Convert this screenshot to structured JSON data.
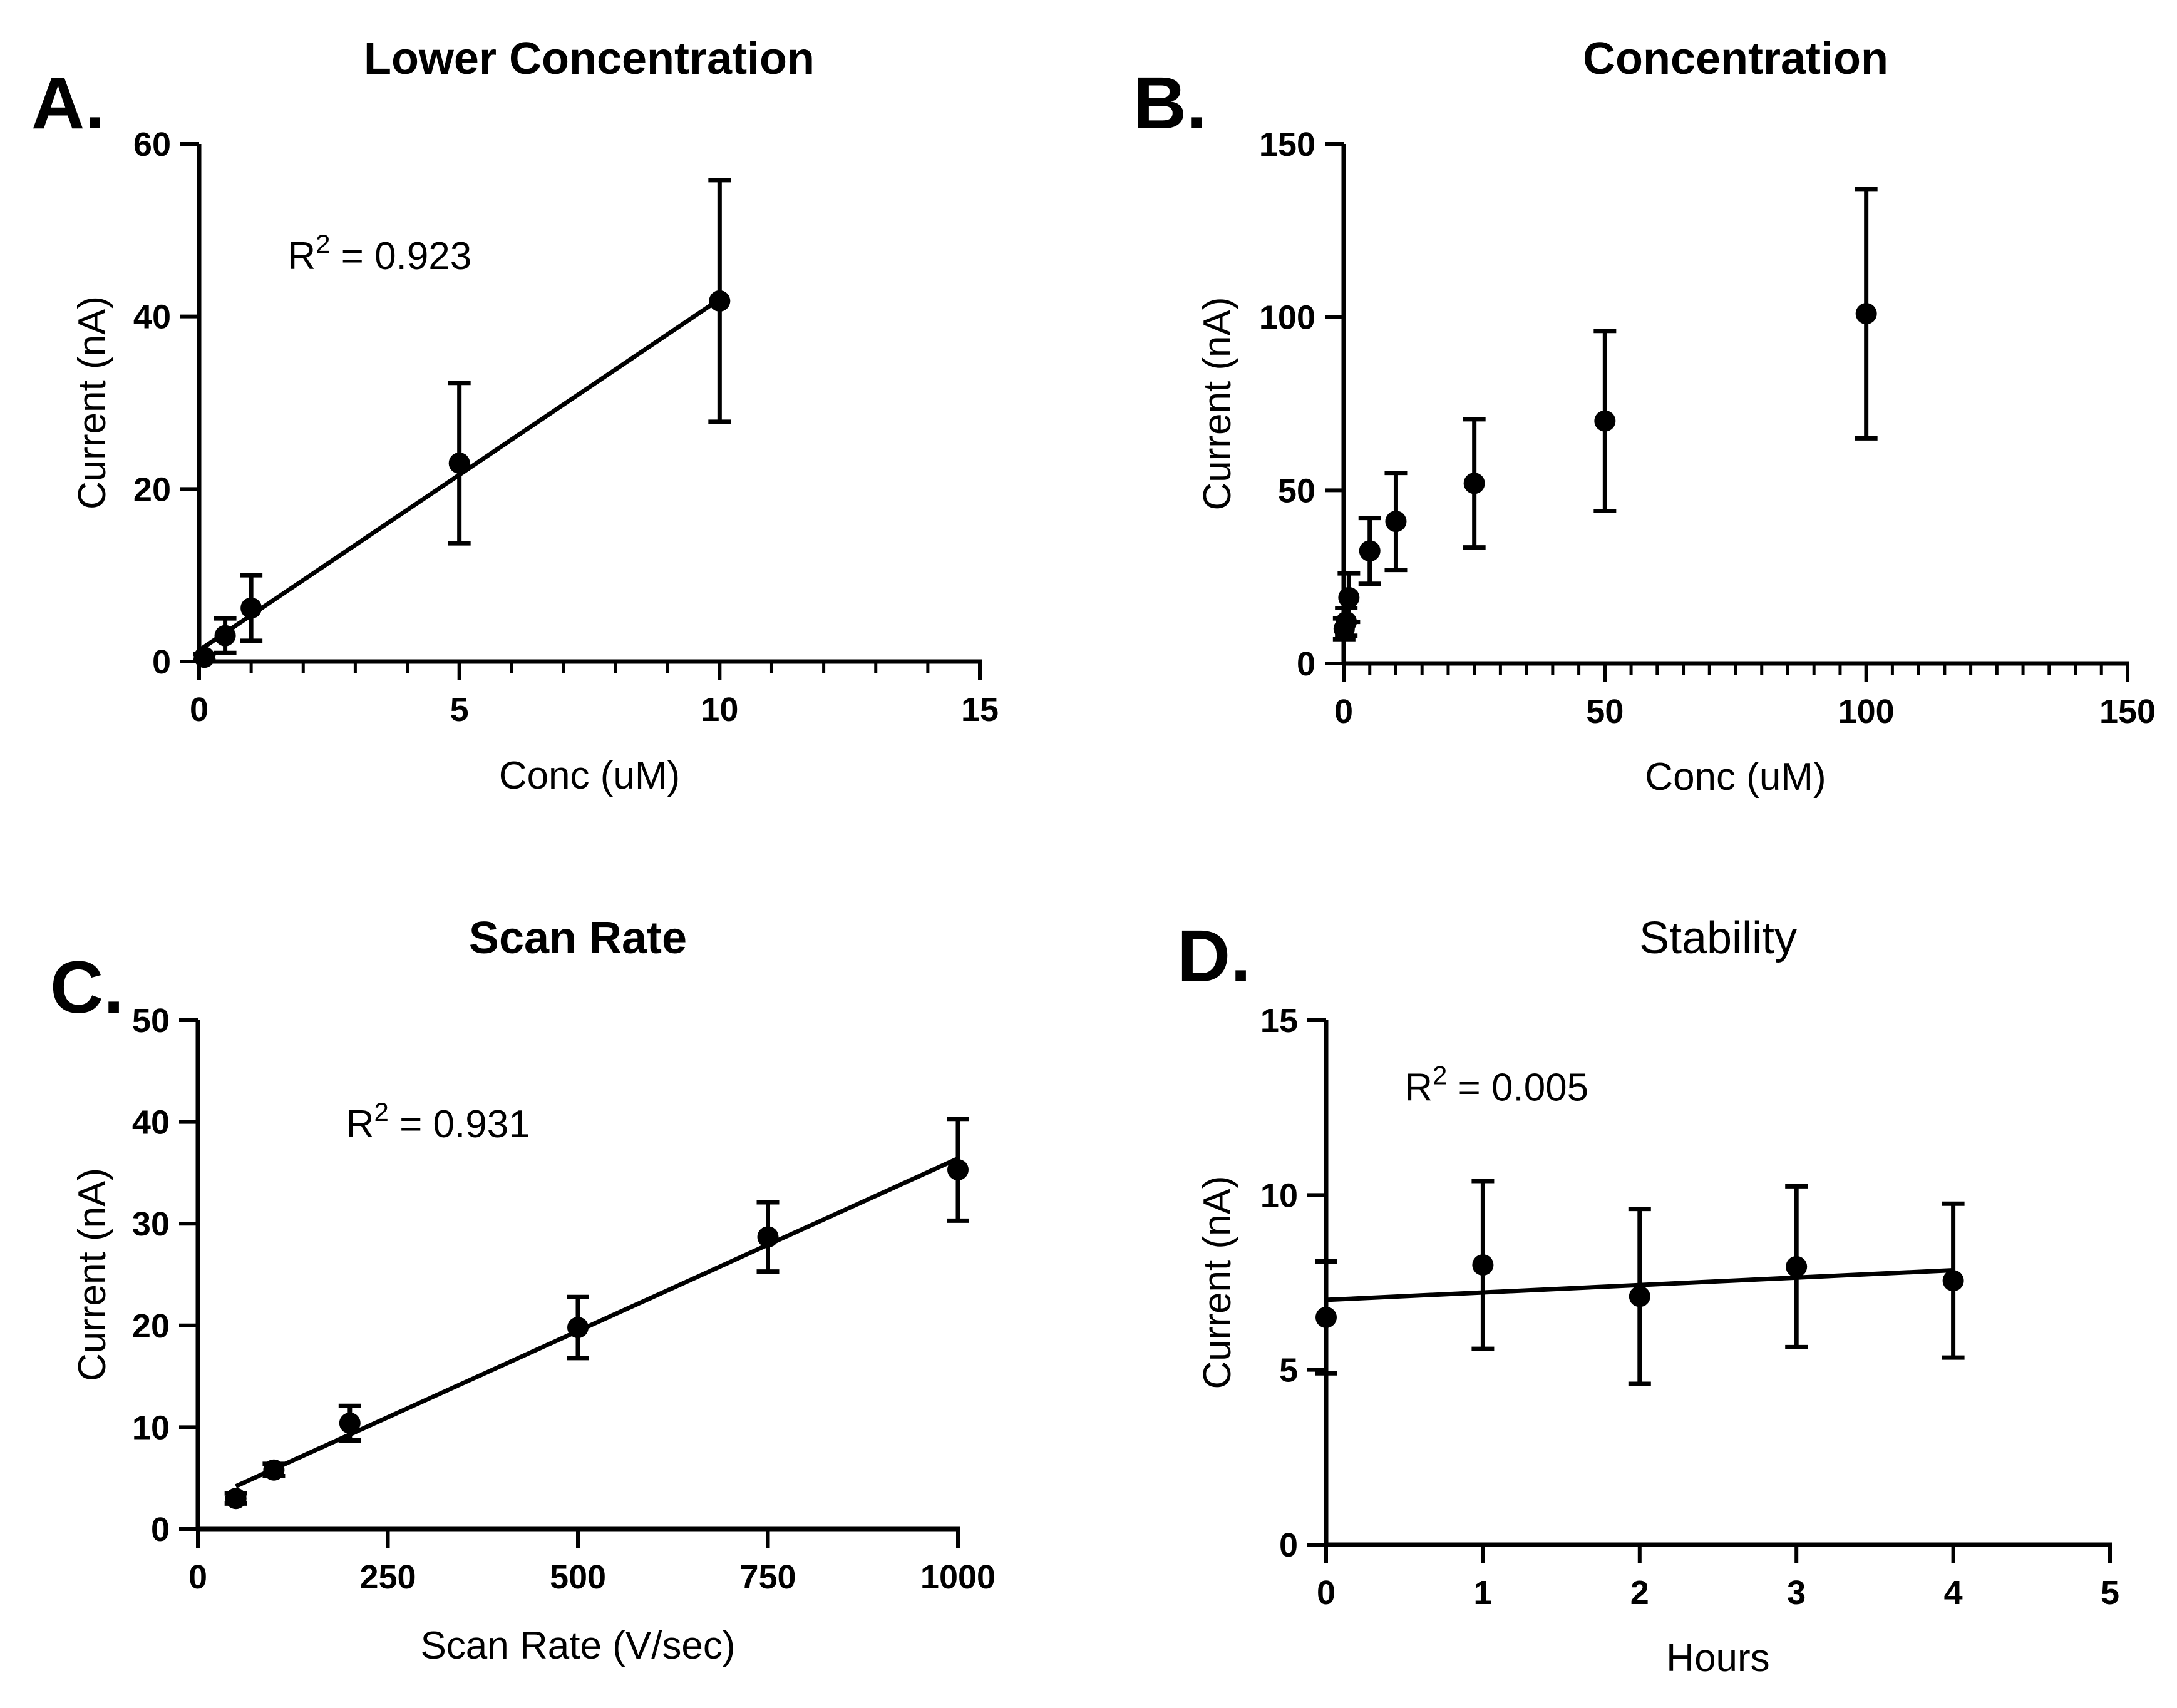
{
  "chart_data": [
    {
      "panel": "A.",
      "type": "scatter",
      "title": "Lower  Concentration",
      "title_bold": true,
      "xlabel": "Conc (uM)",
      "ylabel": "Current (nA)",
      "xlim": [
        0,
        15
      ],
      "ylim": [
        0,
        60
      ],
      "xticks": [
        0,
        5,
        10,
        15
      ],
      "yticks": [
        0,
        20,
        40,
        60
      ],
      "x_minor_step": 1,
      "points": [
        {
          "x": 0.1,
          "y": 0.5,
          "err": 0.4
        },
        {
          "x": 0.5,
          "y": 3.0,
          "err": 2.0
        },
        {
          "x": 1,
          "y": 6.2,
          "err": 3.8
        },
        {
          "x": 5,
          "y": 23.0,
          "err": 9.3
        },
        {
          "x": 10,
          "y": 41.8,
          "err": 14.0
        }
      ],
      "fit": {
        "x": [
          0,
          10
        ],
        "y": [
          1.3,
          42.0
        ]
      },
      "annotation": {
        "text": "R",
        "sup": "2",
        "rest": " = 0.923",
        "at": [
          1.7,
          45.5
        ]
      }
    },
    {
      "panel": "B.",
      "type": "scatter",
      "title": "Concentration",
      "title_bold": true,
      "xlabel": "Conc (uM)",
      "ylabel": "Current (nA)",
      "xlim": [
        0,
        150
      ],
      "ylim": [
        0,
        150
      ],
      "xticks": [
        0,
        50,
        100,
        150
      ],
      "yticks": [
        0,
        50,
        100,
        150
      ],
      "x_minor_step": 5,
      "points": [
        {
          "x": 0.1,
          "y": 10,
          "err": 3
        },
        {
          "x": 0.5,
          "y": 12,
          "err": 4
        },
        {
          "x": 1,
          "y": 19,
          "err": 7
        },
        {
          "x": 5,
          "y": 32.5,
          "err": 9.5
        },
        {
          "x": 10,
          "y": 41,
          "err": 14
        },
        {
          "x": 25,
          "y": 52,
          "err": 18.5
        },
        {
          "x": 50,
          "y": 70,
          "err": 26
        },
        {
          "x": 100,
          "y": 101,
          "err": 36
        }
      ]
    },
    {
      "panel": "C.",
      "type": "scatter",
      "title": "Scan Rate",
      "title_bold": true,
      "xlabel": "Scan Rate (V/sec)",
      "ylabel": "Current (nA)",
      "xlim": [
        0,
        1000
      ],
      "ylim": [
        0,
        50
      ],
      "xticks": [
        0,
        250,
        500,
        750,
        1000
      ],
      "yticks": [
        0,
        10,
        20,
        30,
        40,
        50
      ],
      "points": [
        {
          "x": 50,
          "y": 3.0,
          "err": 0.5
        },
        {
          "x": 100,
          "y": 5.8,
          "err": 0.6
        },
        {
          "x": 200,
          "y": 10.4,
          "err": 1.7
        },
        {
          "x": 500,
          "y": 19.8,
          "err": 3.0
        },
        {
          "x": 750,
          "y": 28.7,
          "err": 3.4
        },
        {
          "x": 1000,
          "y": 35.3,
          "err": 5.0
        }
      ],
      "fit": {
        "x": [
          50,
          1000
        ],
        "y": [
          4.2,
          36.4
        ]
      },
      "annotation": {
        "text": "R",
        "sup": "2",
        "rest": " = 0.931",
        "at": [
          195,
          38.5
        ]
      }
    },
    {
      "panel": "D.",
      "type": "scatter",
      "title": "Stability",
      "title_bold": false,
      "xlabel": "Hours",
      "ylabel": "Current (nA)",
      "xlim": [
        0,
        5
      ],
      "ylim": [
        0,
        15
      ],
      "xticks": [
        0,
        1,
        2,
        3,
        4,
        5
      ],
      "yticks": [
        0,
        5,
        10,
        15
      ],
      "points": [
        {
          "x": 0,
          "y": 6.5,
          "err": 1.6
        },
        {
          "x": 1,
          "y": 8.0,
          "err": 2.4
        },
        {
          "x": 2,
          "y": 7.1,
          "err": 2.5
        },
        {
          "x": 3,
          "y": 7.95,
          "err": 2.3
        },
        {
          "x": 4,
          "y": 7.55,
          "err": 2.2
        }
      ],
      "fit": {
        "x": [
          0,
          4
        ],
        "y": [
          7.0,
          7.85
        ]
      },
      "annotation": {
        "text": "R",
        "sup": "2",
        "rest": " = 0.005",
        "at": [
          0.5,
          12.7
        ]
      }
    }
  ]
}
